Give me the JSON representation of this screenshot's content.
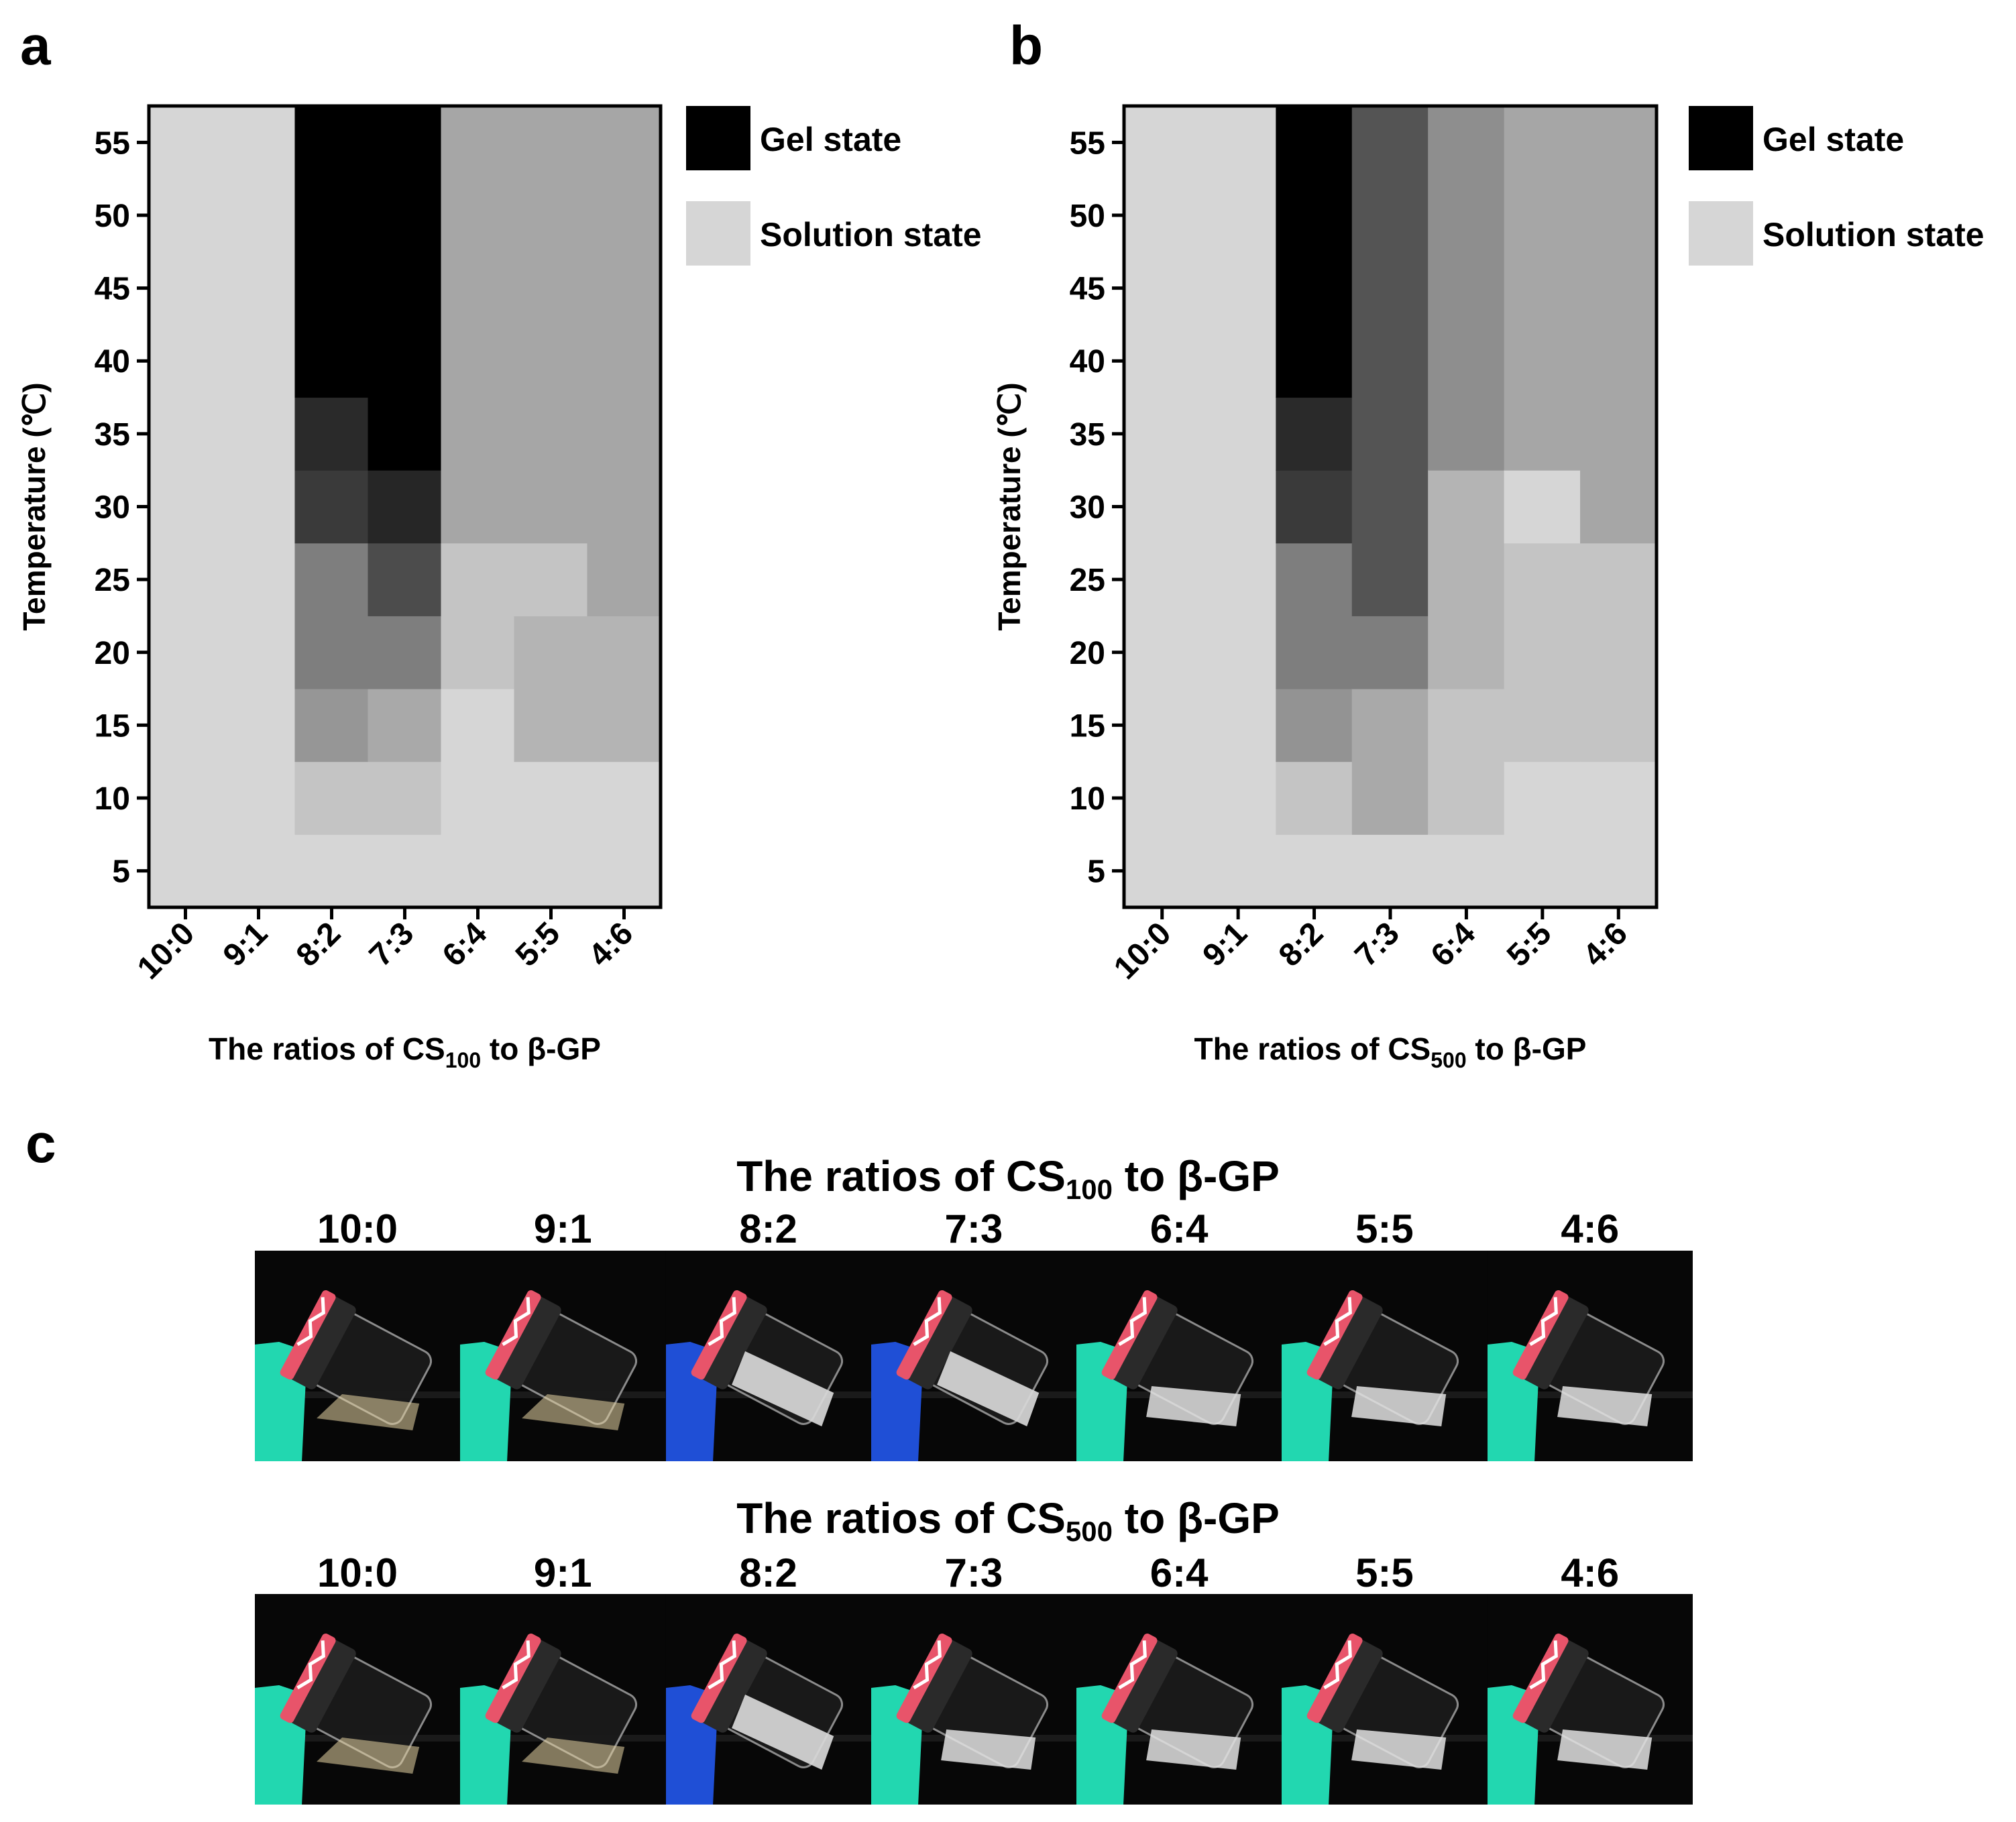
{
  "panels": {
    "a": {
      "label": "a"
    },
    "b": {
      "label": "b"
    },
    "c": {
      "label": "c"
    }
  },
  "chart_data": [
    {
      "type": "heatmap",
      "panel": "a",
      "xlabel_prefix": "The ratios of CS",
      "xlabel_sub": "100",
      "xlabel_suffix": " to β-GP",
      "ylabel": "Temperature (℃)",
      "categories": [
        "10:0",
        "9:1",
        "8:2",
        "7:3",
        "6:4",
        "5:5",
        "4:6"
      ],
      "yticks": [
        5,
        10,
        15,
        20,
        25,
        30,
        35,
        40,
        45,
        50,
        55
      ],
      "ylim": [
        2.5,
        57.5
      ],
      "legend": [
        {
          "label": "Gel state",
          "color": "#000000"
        },
        {
          "label": "Solution state",
          "color": "#d6d6d6"
        }
      ],
      "columns": [
        {
          "ratio": "10:0",
          "cells": [
            {
              "from": 5,
              "to": 55,
              "color": "#d6d6d6"
            }
          ]
        },
        {
          "ratio": "9:1",
          "cells": [
            {
              "from": 5,
              "to": 55,
              "color": "#d6d6d6"
            }
          ]
        },
        {
          "ratio": "8:2",
          "cells": [
            {
              "from": 5,
              "to": 5,
              "color": "#d6d6d6"
            },
            {
              "from": 10,
              "to": 10,
              "color": "#c4c4c4"
            },
            {
              "from": 15,
              "to": 15,
              "color": "#969696"
            },
            {
              "from": 20,
              "to": 25,
              "color": "#7e7e7e"
            },
            {
              "from": 30,
              "to": 30,
              "color": "#3a3a3a"
            },
            {
              "from": 35,
              "to": 35,
              "color": "#2a2a2a"
            },
            {
              "from": 40,
              "to": 55,
              "color": "#000000"
            }
          ]
        },
        {
          "ratio": "7:3",
          "cells": [
            {
              "from": 5,
              "to": 5,
              "color": "#d6d6d6"
            },
            {
              "from": 10,
              "to": 10,
              "color": "#c4c4c4"
            },
            {
              "from": 15,
              "to": 15,
              "color": "#a9a9a9"
            },
            {
              "from": 20,
              "to": 20,
              "color": "#7e7e7e"
            },
            {
              "from": 25,
              "to": 25,
              "color": "#4c4c4c"
            },
            {
              "from": 30,
              "to": 30,
              "color": "#262626"
            },
            {
              "from": 35,
              "to": 55,
              "color": "#000000"
            }
          ]
        },
        {
          "ratio": "6:4",
          "cells": [
            {
              "from": 5,
              "to": 15,
              "color": "#d6d6d6"
            },
            {
              "from": 20,
              "to": 25,
              "color": "#c4c4c4"
            },
            {
              "from": 30,
              "to": 55,
              "color": "#a6a6a6"
            }
          ]
        },
        {
          "ratio": "5:5",
          "cells": [
            {
              "from": 5,
              "to": 10,
              "color": "#d6d6d6"
            },
            {
              "from": 15,
              "to": 20,
              "color": "#b4b4b4"
            },
            {
              "from": 25,
              "to": 25,
              "color": "#c4c4c4"
            },
            {
              "from": 30,
              "to": 55,
              "color": "#a6a6a6"
            }
          ]
        },
        {
          "ratio": "4:6",
          "cells": [
            {
              "from": 5,
              "to": 10,
              "color": "#d6d6d6"
            },
            {
              "from": 15,
              "to": 20,
              "color": "#b4b4b4"
            },
            {
              "from": 25,
              "to": 55,
              "color": "#a6a6a6"
            }
          ]
        }
      ]
    },
    {
      "type": "heatmap",
      "panel": "b",
      "xlabel_prefix": "The ratios of CS",
      "xlabel_sub": "500",
      "xlabel_suffix": " to β-GP",
      "ylabel": "Temperature (℃)",
      "categories": [
        "10:0",
        "9:1",
        "8:2",
        "7:3",
        "6:4",
        "5:5",
        "4:6"
      ],
      "yticks": [
        5,
        10,
        15,
        20,
        25,
        30,
        35,
        40,
        45,
        50,
        55
      ],
      "ylim": [
        2.5,
        57.5
      ],
      "legend": [
        {
          "label": "Gel state",
          "color": "#000000"
        },
        {
          "label": "Solution state",
          "color": "#d6d6d6"
        }
      ],
      "columns": [
        {
          "ratio": "10:0",
          "cells": [
            {
              "from": 5,
              "to": 55,
              "color": "#d6d6d6"
            }
          ]
        },
        {
          "ratio": "9:1",
          "cells": [
            {
              "from": 5,
              "to": 55,
              "color": "#d6d6d6"
            }
          ]
        },
        {
          "ratio": "8:2",
          "cells": [
            {
              "from": 5,
              "to": 5,
              "color": "#d6d6d6"
            },
            {
              "from": 10,
              "to": 10,
              "color": "#c4c4c4"
            },
            {
              "from": 15,
              "to": 15,
              "color": "#939393"
            },
            {
              "from": 20,
              "to": 25,
              "color": "#7e7e7e"
            },
            {
              "from": 30,
              "to": 30,
              "color": "#3a3a3a"
            },
            {
              "from": 35,
              "to": 35,
              "color": "#2a2a2a"
            },
            {
              "from": 40,
              "to": 55,
              "color": "#000000"
            }
          ]
        },
        {
          "ratio": "7:3",
          "cells": [
            {
              "from": 5,
              "to": 5,
              "color": "#d6d6d6"
            },
            {
              "from": 10,
              "to": 15,
              "color": "#a9a9a9"
            },
            {
              "from": 20,
              "to": 20,
              "color": "#7e7e7e"
            },
            {
              "from": 25,
              "to": 55,
              "color": "#545454"
            }
          ]
        },
        {
          "ratio": "6:4",
          "cells": [
            {
              "from": 5,
              "to": 5,
              "color": "#d6d6d6"
            },
            {
              "from": 10,
              "to": 15,
              "color": "#c4c4c4"
            },
            {
              "from": 20,
              "to": 30,
              "color": "#b4b4b4"
            },
            {
              "from": 35,
              "to": 55,
              "color": "#8e8e8e"
            }
          ]
        },
        {
          "ratio": "5:5",
          "cells": [
            {
              "from": 5,
              "to": 10,
              "color": "#d6d6d6"
            },
            {
              "from": 15,
              "to": 25,
              "color": "#c4c4c4"
            },
            {
              "from": 30,
              "to": 30,
              "color": "#d6d6d6"
            },
            {
              "from": 35,
              "to": 55,
              "color": "#a6a6a6"
            }
          ]
        },
        {
          "ratio": "4:6",
          "cells": [
            {
              "from": 5,
              "to": 10,
              "color": "#d6d6d6"
            },
            {
              "from": 15,
              "to": 25,
              "color": "#c4c4c4"
            },
            {
              "from": 30,
              "to": 55,
              "color": "#a6a6a6"
            }
          ]
        }
      ]
    }
  ],
  "photos": {
    "rows": [
      {
        "title_prefix": "The ratios of CS",
        "title_sub": "100",
        "title_suffix": " to β-GP",
        "ratios": [
          "10:0",
          "9:1",
          "8:2",
          "7:3",
          "6:4",
          "5:5",
          "4:6"
        ],
        "states": [
          "clear",
          "clear",
          "gel",
          "gel",
          "turbid",
          "turbid",
          "turbid"
        ],
        "holders": [
          "teal",
          "teal",
          "blue",
          "blue",
          "teal",
          "teal",
          "teal"
        ]
      },
      {
        "title_prefix": "The ratios of CS",
        "title_sub": "500",
        "title_suffix": " to β-GP",
        "ratios": [
          "10:0",
          "9:1",
          "8:2",
          "7:3",
          "6:4",
          "5:5",
          "4:6"
        ],
        "states": [
          "clear",
          "clear",
          "gel",
          "turbid",
          "turbid",
          "turbid",
          "turbid"
        ],
        "holders": [
          "teal",
          "teal",
          "blue",
          "teal",
          "teal",
          "teal",
          "teal"
        ]
      }
    ]
  }
}
